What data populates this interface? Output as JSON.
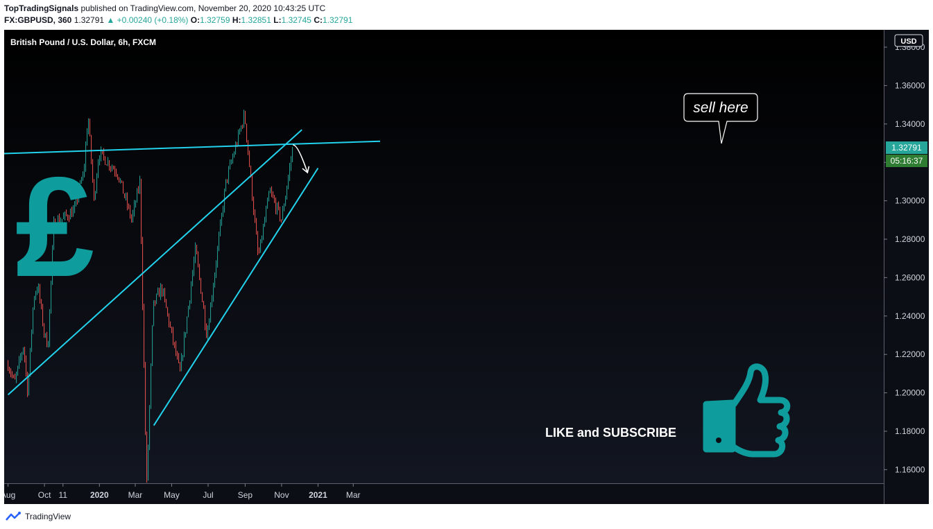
{
  "header": {
    "publisher": "TopTradingSignals",
    "published_on": "published on TradingView.com, November 20, 2020 10:43:25 UTC",
    "symbol": "FX:GBPUSD, 360",
    "last": "1.32791",
    "change": "+0.00240 (+0.18%)",
    "open_label": "O:",
    "open": "1.32759",
    "high_label": "H:",
    "high": "1.32851",
    "low_label": "L:",
    "low": "1.32745",
    "close_label": "C:",
    "close": "1.32791"
  },
  "footer": {
    "brand": "TradingView",
    "icon": "tradingview-logo-icon"
  },
  "annotations": {
    "callout": "sell here",
    "promo": "LIKE and SUBSCRIBE",
    "pound_icon": "pound-sign-icon",
    "thumb_icon": "thumbs-up-icon"
  },
  "colors": {
    "background": "#0c0e15",
    "trendline": "#22d3ee",
    "candle_up": "#26a69a",
    "candle_down": "#ef5350",
    "icon_teal": "#0e9c9c",
    "price_badge": "#26a69a",
    "timer_badge": "#2e7d32"
  },
  "chart_data": {
    "type": "candlestick",
    "title": "British Pound / U.S. Dollar, 6h, FXCM",
    "currency": "USD",
    "ylim": [
      1.15,
      1.38
    ],
    "y_ticks": [
      "1.38000",
      "1.36000",
      "1.34000",
      "1.32000",
      "1.30000",
      "1.28000",
      "1.26000",
      "1.24000",
      "1.22000",
      "1.20000",
      "1.18000",
      "1.16000"
    ],
    "x_ticks": [
      "Aug",
      "Oct",
      "11",
      "2020",
      "Mar",
      "May",
      "Jul",
      "Sep",
      "Nov",
      "2021",
      "Mar"
    ],
    "last_price": "1.32791",
    "countdown": "05:16:37",
    "price_path": [
      {
        "date": "2019-08-01",
        "price": 1.215
      },
      {
        "date": "2019-08-12",
        "price": 1.205
      },
      {
        "date": "2019-08-27",
        "price": 1.225
      },
      {
        "date": "2019-09-03",
        "price": 1.2
      },
      {
        "date": "2019-09-13",
        "price": 1.25
      },
      {
        "date": "2019-09-20",
        "price": 1.256
      },
      {
        "date": "2019-10-01",
        "price": 1.23
      },
      {
        "date": "2019-10-07",
        "price": 1.225
      },
      {
        "date": "2019-10-17",
        "price": 1.29
      },
      {
        "date": "2019-10-28",
        "price": 1.29
      },
      {
        "date": "2019-11-20",
        "price": 1.295
      },
      {
        "date": "2019-12-06",
        "price": 1.315
      },
      {
        "date": "2019-12-13",
        "price": 1.345
      },
      {
        "date": "2019-12-23",
        "price": 1.3
      },
      {
        "date": "2019-12-31",
        "price": 1.325
      },
      {
        "date": "2020-01-31",
        "price": 1.315
      },
      {
        "date": "2020-02-24",
        "price": 1.29
      },
      {
        "date": "2020-03-09",
        "price": 1.31
      },
      {
        "date": "2020-03-20",
        "price": 1.15
      },
      {
        "date": "2020-03-31",
        "price": 1.245
      },
      {
        "date": "2020-04-14",
        "price": 1.255
      },
      {
        "date": "2020-05-15",
        "price": 1.21
      },
      {
        "date": "2020-06-10",
        "price": 1.275
      },
      {
        "date": "2020-06-29",
        "price": 1.23
      },
      {
        "date": "2020-07-31",
        "price": 1.31
      },
      {
        "date": "2020-08-31",
        "price": 1.345
      },
      {
        "date": "2020-09-23",
        "price": 1.27
      },
      {
        "date": "2020-10-12",
        "price": 1.305
      },
      {
        "date": "2020-11-01",
        "price": 1.29
      },
      {
        "date": "2020-11-20",
        "price": 1.3279
      }
    ],
    "trendlines": [
      {
        "name": "resistance",
        "from": {
          "date": "2019-07-15",
          "price": 1.3245
        },
        "to": {
          "date": "2021-04-15",
          "price": 1.331
        }
      },
      {
        "name": "upper-wedge",
        "from": {
          "date": "2019-08-01",
          "price": 1.199
        },
        "to": {
          "date": "2020-12-05",
          "price": 1.337
        }
      },
      {
        "name": "lower-wedge",
        "from": {
          "date": "2020-04-01",
          "price": 1.183
        },
        "to": {
          "date": "2021-01-01",
          "price": 1.317
        }
      }
    ],
    "projection": {
      "from": {
        "date": "2020-11-20",
        "price": 1.329
      },
      "to": {
        "date": "2020-12-14",
        "price": 1.315
      }
    }
  }
}
